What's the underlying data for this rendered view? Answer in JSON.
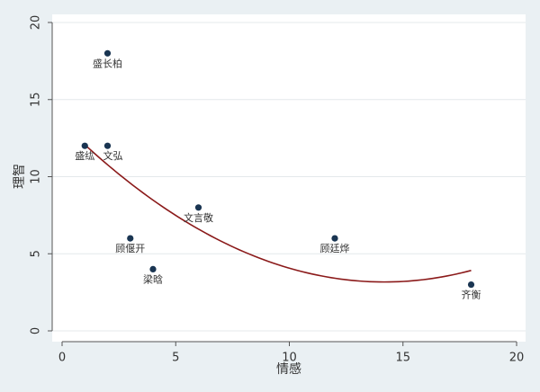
{
  "chart_data": {
    "type": "scatter",
    "title": "",
    "xlabel": "情感",
    "ylabel": "理智",
    "xlim": [
      0,
      20
    ],
    "ylim": [
      0,
      20
    ],
    "xticks": [
      "0",
      "5",
      "10",
      "15",
      "20"
    ],
    "yticks": [
      "0",
      "5",
      "10",
      "15",
      "20"
    ],
    "grid": "horizontal",
    "points": [
      {
        "x": 2,
        "y": 18,
        "label": "盛长柏"
      },
      {
        "x": 1,
        "y": 12,
        "label": "盛纮"
      },
      {
        "x": 2,
        "y": 12,
        "label": "文弘"
      },
      {
        "x": 3,
        "y": 6,
        "label": "顾偃开"
      },
      {
        "x": 4,
        "y": 4,
        "label": "梁晗"
      },
      {
        "x": 6,
        "y": 8,
        "label": "文言敬"
      },
      {
        "x": 12,
        "y": 6,
        "label": "顾廷烨"
      },
      {
        "x": 18,
        "y": 3,
        "label": "齐衡"
      }
    ],
    "fit_line": {
      "type": "quadratic",
      "x_range": [
        1,
        18
      ],
      "coefficients": [
        13.476,
        -1.4535,
        0.05125
      ]
    },
    "colors": {
      "marker": "#1a3552",
      "fit": "#8b1a1a",
      "grid": "#e4e8eb",
      "axis": "#555555"
    }
  }
}
